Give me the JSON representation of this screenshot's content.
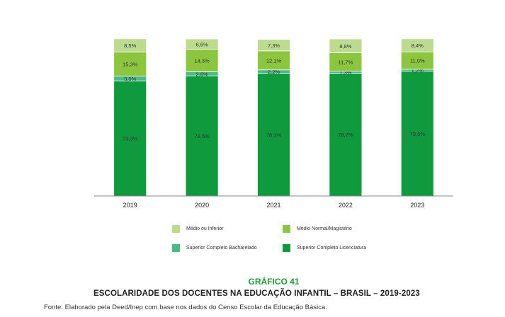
{
  "chart_data": {
    "type": "bar",
    "stacked": true,
    "categories": [
      "2019",
      "2020",
      "2021",
      "2022",
      "2023"
    ],
    "series": [
      {
        "name": "Superior Completo Licenciatura",
        "color": "#0f9a3e",
        "values": [
          73.3,
          76.5,
          78.1,
          78.2,
          79.5
        ],
        "labels": [
          "73,3%",
          "76,5%",
          "78,1%",
          "78,2%",
          "79,5%"
        ]
      },
      {
        "name": "Superior Completo Bacharelado",
        "color": "#4db88a",
        "values": [
          3.0,
          2.6,
          2.2,
          1.3,
          1.2
        ],
        "labels": [
          "3,0%",
          "2,6%",
          "2,2%",
          "1,3%",
          "1,2%"
        ]
      },
      {
        "name": "Médio Normal/Magistério",
        "color": "#8cc63f",
        "values": [
          15.3,
          14.3,
          12.1,
          11.7,
          11.0
        ],
        "labels": [
          "15,3%",
          "14,3%",
          "12,1%",
          "11,7%",
          "11,0%"
        ]
      },
      {
        "name": "Médio ou Inferior",
        "color": "#bddb8f",
        "values": [
          8.5,
          6.6,
          7.3,
          8.8,
          8.4
        ],
        "labels": [
          "8,5%",
          "6,6%",
          "7,3%",
          "8,8%",
          "8,4%"
        ]
      }
    ],
    "ylim": [
      0,
      100
    ],
    "grid": false,
    "legend_position": "bottom"
  },
  "legend": [
    {
      "label": "Médio ou Inferior",
      "color": "#bddb8f"
    },
    {
      "label": "Médio Normal/Magistério",
      "color": "#8cc63f"
    },
    {
      "label": "Superior Completo Bacharelado",
      "color": "#4db88a"
    },
    {
      "label": "Superior Completo Licenciatura",
      "color": "#0f9a3e"
    }
  ],
  "caption": {
    "graphic_number": "GRÁFICO 41",
    "title": "ESCOLARIDADE DOS DOCENTES NA EDUCAÇÃO INFANTIL – BRASIL – 2019-2023",
    "source": "Fonte: Elaborado pela Deed/Inep com base nos dados do Censo Escolar da Educação Básica."
  }
}
